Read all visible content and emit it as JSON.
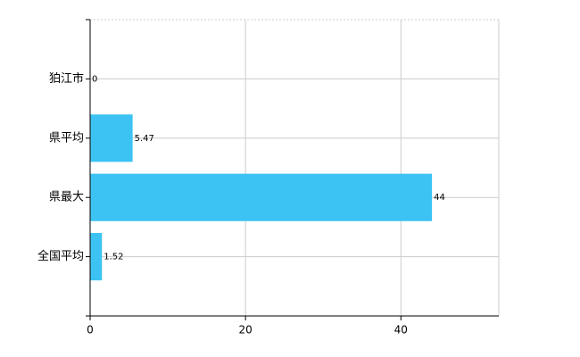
{
  "chart_data": {
    "type": "bar",
    "orientation": "horizontal",
    "categories": [
      "狛江市",
      "県平均",
      "県最大",
      "全国平均"
    ],
    "values": [
      0,
      5.47,
      44,
      1.52
    ],
    "color": "#3cc3f4",
    "xlim": [
      0,
      52.6
    ],
    "xticks": [
      0,
      20,
      40
    ],
    "grid": true
  }
}
